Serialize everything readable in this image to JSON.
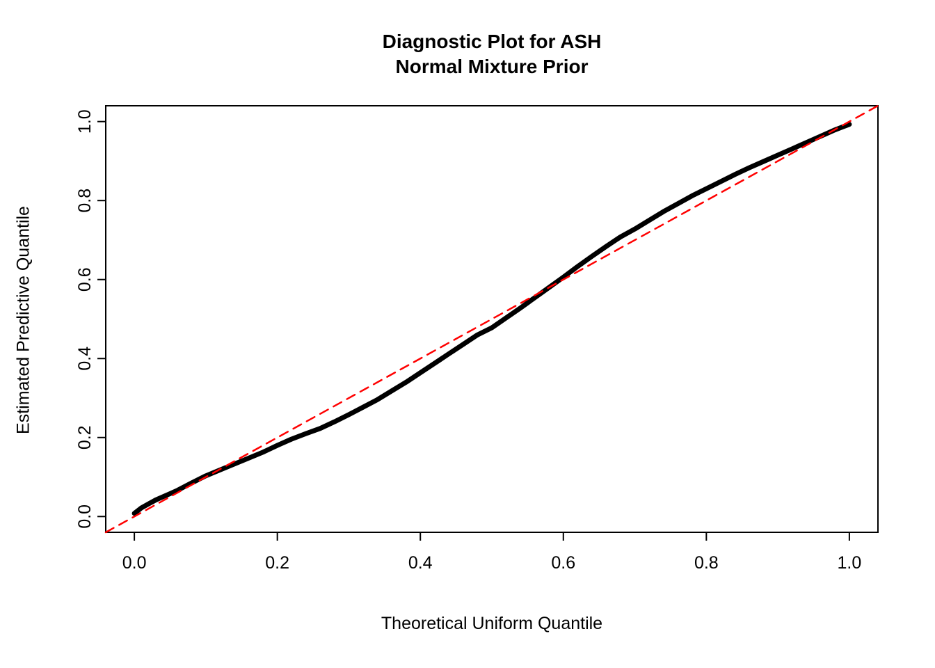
{
  "header": {
    "title_line1": "Diagnostic Plot for ASH",
    "title_line2": "Normal Mixture Prior"
  },
  "chart_data": {
    "type": "line",
    "title": "Diagnostic Plot for ASH\nNormal Mixture Prior",
    "xlabel": "Theoretical Uniform Quantile",
    "ylabel": "Estimated Predictive Quantile",
    "xlim": [
      -0.04,
      1.04
    ],
    "ylim": [
      -0.04,
      1.04
    ],
    "x_ticks": [
      0.0,
      0.2,
      0.4,
      0.6,
      0.8,
      1.0
    ],
    "y_ticks": [
      0.0,
      0.2,
      0.4,
      0.6,
      0.8,
      1.0
    ],
    "grid": false,
    "legend": "none",
    "colors": {
      "curve": "#000000",
      "reference": "#FF0000",
      "box": "#000000",
      "background": "#FFFFFF"
    },
    "series": [
      {
        "name": "estimated-predictive-quantiles",
        "type": "line",
        "color": "#000000",
        "line_style": "solid",
        "line_width": 7,
        "x": [
          0.0,
          0.005,
          0.01,
          0.02,
          0.03,
          0.04,
          0.05,
          0.06,
          0.08,
          0.1,
          0.12,
          0.14,
          0.16,
          0.18,
          0.2,
          0.22,
          0.24,
          0.26,
          0.28,
          0.3,
          0.32,
          0.34,
          0.36,
          0.38,
          0.4,
          0.42,
          0.44,
          0.46,
          0.48,
          0.5,
          0.52,
          0.54,
          0.56,
          0.58,
          0.6,
          0.62,
          0.64,
          0.66,
          0.68,
          0.7,
          0.72,
          0.74,
          0.76,
          0.78,
          0.8,
          0.82,
          0.84,
          0.86,
          0.88,
          0.9,
          0.92,
          0.94,
          0.96,
          0.98,
          0.99,
          1.0
        ],
        "y": [
          0.008,
          0.015,
          0.022,
          0.032,
          0.042,
          0.05,
          0.058,
          0.066,
          0.085,
          0.103,
          0.118,
          0.133,
          0.148,
          0.163,
          0.18,
          0.196,
          0.21,
          0.223,
          0.24,
          0.258,
          0.277,
          0.296,
          0.318,
          0.34,
          0.364,
          0.388,
          0.412,
          0.436,
          0.46,
          0.478,
          0.503,
          0.528,
          0.554,
          0.58,
          0.606,
          0.633,
          0.659,
          0.684,
          0.708,
          0.728,
          0.75,
          0.772,
          0.792,
          0.812,
          0.83,
          0.848,
          0.866,
          0.883,
          0.899,
          0.915,
          0.931,
          0.947,
          0.963,
          0.979,
          0.986,
          0.993
        ]
      },
      {
        "name": "identity-reference-line",
        "type": "line",
        "color": "#FF0000",
        "line_style": "dashed",
        "line_width": 2.5,
        "x": [
          -0.04,
          1.04
        ],
        "y": [
          -0.04,
          1.04
        ]
      }
    ]
  }
}
